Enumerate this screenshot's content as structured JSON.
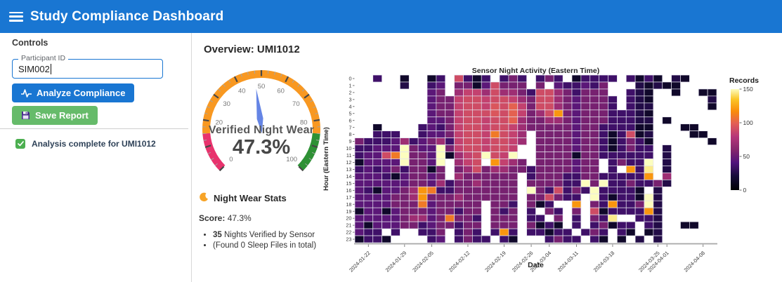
{
  "header": {
    "title": "Study Compliance Dashboard",
    "menu_icon": "hamburger-menu"
  },
  "colors": {
    "header_blue": "#1976d2",
    "button_green": "#66bb6a",
    "check_green": "#4caf50",
    "status_text": "#2f4258"
  },
  "sidebar": {
    "controls_label": "Controls",
    "participant_field": {
      "label": "Participant ID",
      "value": "SIM002"
    },
    "analyze_button_label": "Analyze Compliance",
    "save_button_label": "Save Report",
    "status_text": "Analysis complete for UMI1012"
  },
  "main": {
    "overview_title": "Overview: UMI1012",
    "stats": {
      "heading": "Night Wear Stats",
      "score_label": "Score:",
      "score_value": " 47.3%",
      "bullet1_bold": "35",
      "bullet1_text": " Nights Verified by Sensor",
      "bullet2_text": "(Found 0 Sleep Files in total)"
    }
  },
  "chart_data": [
    {
      "type": "gauge",
      "title": "Verified Night Wear",
      "value": 47.3,
      "value_label": "47.3%",
      "min": 0,
      "max": 100,
      "start_angle": 225,
      "end_angle": -45,
      "major_tick_interval": 10,
      "minor_tick_interval": 2.5,
      "visible_tick_labels": [
        0,
        20,
        30,
        40,
        50,
        60,
        70,
        80,
        100
      ],
      "zones": [
        {
          "from": 0,
          "to": 15,
          "color": "#e8336d"
        },
        {
          "from": 15,
          "to": 85,
          "color": "#f89821"
        },
        {
          "from": 85,
          "to": 100,
          "color": "#2e9135"
        }
      ],
      "needle_color": "#6585e5"
    },
    {
      "type": "heatmap",
      "title": "Sensor Night Activity (Eastern Time)",
      "xlabel": "Date",
      "ylabel": "Hour (Eastern Time)",
      "y_categories": [
        0,
        1,
        2,
        3,
        4,
        5,
        6,
        7,
        8,
        9,
        10,
        11,
        12,
        13,
        14,
        15,
        16,
        17,
        18,
        19,
        20,
        21,
        22,
        23
      ],
      "n_cols": 40,
      "x_ticks": [
        {
          "col": 1,
          "label": "2024-01-22"
        },
        {
          "col": 5,
          "label": "2024-01-29"
        },
        {
          "col": 8,
          "label": "2024-02-05"
        },
        {
          "col": 12,
          "label": "2024-02-12"
        },
        {
          "col": 16,
          "label": "2024-02-19"
        },
        {
          "col": 19,
          "label": "2024-02-26"
        },
        {
          "col": 21,
          "label": "2024-03-04"
        },
        {
          "col": 24,
          "label": "2024-03-11"
        },
        {
          "col": 28,
          "label": "2024-03-18"
        },
        {
          "col": 33,
          "label": "2024-03-25"
        },
        {
          "col": 34,
          "label": "2024-04-01"
        },
        {
          "col": 38,
          "label": "2024-04-08"
        }
      ],
      "colorbar": {
        "label": "Records",
        "ticks": [
          0,
          50,
          100,
          150
        ],
        "min": 0,
        "max": 150
      },
      "colormap_stops": [
        {
          "t": 0,
          "c": "#000004"
        },
        {
          "t": 0.14,
          "c": "#160b39"
        },
        {
          "t": 0.27,
          "c": "#4f127b"
        },
        {
          "t": 0.4,
          "c": "#85266c"
        },
        {
          "t": 0.53,
          "c": "#b63679"
        },
        {
          "t": 0.66,
          "c": "#e35e54"
        },
        {
          "t": 0.78,
          "c": "#f98c0a"
        },
        {
          "t": 0.9,
          "c": "#fbc627"
        },
        {
          "t": 1,
          "c": "#fcfdbf"
        }
      ],
      "values": [
        [
          null,
          null,
          35,
          null,
          null,
          15,
          null,
          null,
          15,
          35,
          null,
          90,
          35,
          15,
          35,
          null,
          35,
          55,
          35,
          null,
          35,
          55,
          35,
          null,
          15,
          35,
          35,
          35,
          35,
          null,
          35,
          15,
          35,
          15,
          null,
          25,
          15,
          null,
          null,
          null
        ],
        [
          null,
          null,
          null,
          null,
          null,
          25,
          null,
          null,
          35,
          45,
          null,
          55,
          55,
          15,
          45,
          90,
          55,
          55,
          55,
          null,
          55,
          null,
          45,
          35,
          35,
          45,
          35,
          55,
          null,
          null,
          null,
          25,
          15,
          25,
          15,
          15,
          null,
          null,
          null,
          null
        ],
        [
          null,
          null,
          null,
          null,
          null,
          null,
          null,
          null,
          45,
          55,
          null,
          70,
          85,
          85,
          70,
          90,
          70,
          70,
          55,
          35,
          90,
          90,
          70,
          55,
          35,
          55,
          55,
          55,
          null,
          null,
          35,
          25,
          15,
          null,
          null,
          15,
          null,
          null,
          15,
          15
        ],
        [
          null,
          null,
          null,
          null,
          null,
          null,
          null,
          null,
          45,
          55,
          55,
          85,
          90,
          90,
          85,
          90,
          90,
          85,
          70,
          55,
          90,
          90,
          70,
          55,
          45,
          55,
          55,
          55,
          35,
          null,
          35,
          25,
          15,
          null,
          null,
          null,
          null,
          null,
          null,
          25
        ],
        [
          null,
          null,
          null,
          null,
          null,
          null,
          null,
          null,
          45,
          55,
          55,
          85,
          90,
          90,
          85,
          95,
          90,
          100,
          85,
          55,
          90,
          90,
          70,
          55,
          45,
          55,
          55,
          55,
          35,
          null,
          35,
          25,
          25,
          null,
          null,
          null,
          null,
          null,
          null,
          15
        ],
        [
          null,
          null,
          null,
          null,
          null,
          null,
          null,
          null,
          45,
          55,
          55,
          85,
          90,
          90,
          90,
          95,
          90,
          100,
          85,
          55,
          70,
          90,
          120,
          55,
          45,
          55,
          55,
          55,
          35,
          35,
          35,
          25,
          15,
          null,
          null,
          null,
          null,
          null,
          null,
          null
        ],
        [
          null,
          null,
          null,
          null,
          null,
          null,
          null,
          null,
          45,
          45,
          55,
          85,
          90,
          90,
          85,
          90,
          90,
          100,
          70,
          55,
          55,
          70,
          70,
          55,
          45,
          55,
          55,
          55,
          35,
          35,
          35,
          25,
          25,
          null,
          15,
          null,
          null,
          null,
          null,
          null
        ],
        [
          null,
          null,
          15,
          null,
          null,
          null,
          null,
          35,
          45,
          35,
          55,
          85,
          90,
          90,
          85,
          90,
          90,
          85,
          70,
          55,
          55,
          55,
          55,
          55,
          45,
          55,
          55,
          35,
          35,
          35,
          35,
          15,
          15,
          null,
          null,
          null,
          15,
          15,
          null,
          null
        ],
        [
          null,
          null,
          35,
          35,
          35,
          null,
          null,
          35,
          45,
          45,
          55,
          85,
          90,
          90,
          85,
          110,
          90,
          85,
          70,
          null,
          55,
          55,
          55,
          55,
          45,
          55,
          55,
          35,
          15,
          35,
          90,
          15,
          25,
          null,
          null,
          null,
          null,
          15,
          15,
          null
        ],
        [
          55,
          35,
          35,
          35,
          45,
          70,
          35,
          45,
          55,
          70,
          35,
          85,
          90,
          90,
          85,
          90,
          90,
          85,
          70,
          null,
          55,
          55,
          55,
          55,
          45,
          55,
          55,
          35,
          15,
          35,
          55,
          35,
          15,
          null,
          null,
          null,
          null,
          null,
          null,
          15
        ],
        [
          35,
          35,
          45,
          45,
          45,
          150,
          55,
          45,
          45,
          150,
          55,
          85,
          90,
          90,
          85,
          90,
          90,
          85,
          null,
          null,
          55,
          55,
          55,
          55,
          45,
          55,
          55,
          35,
          15,
          35,
          55,
          35,
          35,
          null,
          25,
          null,
          null,
          null,
          null,
          null
        ],
        [
          35,
          45,
          45,
          90,
          110,
          150,
          55,
          55,
          45,
          150,
          15,
          70,
          85,
          90,
          150,
          90,
          85,
          150,
          null,
          null,
          55,
          55,
          55,
          55,
          15,
          55,
          55,
          35,
          35,
          35,
          35,
          35,
          35,
          null,
          25,
          null,
          null,
          null,
          null,
          null
        ],
        [
          15,
          45,
          45,
          45,
          45,
          150,
          55,
          55,
          45,
          150,
          null,
          70,
          85,
          90,
          null,
          120,
          85,
          70,
          55,
          null,
          55,
          55,
          55,
          55,
          45,
          55,
          55,
          null,
          35,
          55,
          35,
          35,
          150,
          null,
          25,
          null,
          null,
          null,
          null,
          null
        ],
        [
          35,
          45,
          35,
          45,
          55,
          35,
          55,
          55,
          15,
          55,
          null,
          55,
          70,
          90,
          55,
          70,
          70,
          55,
          55,
          35,
          55,
          55,
          55,
          55,
          45,
          55,
          55,
          null,
          35,
          null,
          120,
          35,
          145,
          null,
          25,
          null,
          null,
          null,
          null,
          null
        ],
        [
          45,
          45,
          45,
          35,
          15,
          45,
          55,
          55,
          45,
          55,
          null,
          70,
          55,
          55,
          55,
          55,
          55,
          55,
          null,
          35,
          55,
          55,
          55,
          35,
          35,
          55,
          55,
          35,
          35,
          35,
          35,
          35,
          120,
          null,
          70,
          null,
          null,
          null,
          null,
          null
        ],
        [
          45,
          45,
          45,
          45,
          45,
          45,
          55,
          55,
          45,
          70,
          35,
          55,
          55,
          70,
          55,
          55,
          55,
          55,
          null,
          55,
          55,
          55,
          55,
          35,
          35,
          150,
          55,
          150,
          35,
          35,
          55,
          35,
          35,
          55,
          25,
          null,
          null,
          null,
          null,
          null
        ],
        [
          45,
          35,
          15,
          45,
          45,
          55,
          70,
          120,
          110,
          35,
          35,
          55,
          55,
          55,
          55,
          55,
          55,
          55,
          null,
          150,
          55,
          35,
          90,
          35,
          55,
          35,
          150,
          35,
          35,
          35,
          35,
          15,
          null,
          25,
          null,
          null,
          null,
          null,
          null,
          null
        ],
        [
          45,
          45,
          45,
          45,
          55,
          55,
          70,
          120,
          55,
          55,
          55,
          70,
          55,
          55,
          55,
          55,
          55,
          55,
          null,
          55,
          55,
          90,
          55,
          35,
          35,
          null,
          150,
          35,
          15,
          35,
          35,
          15,
          150,
          25,
          null,
          null,
          null,
          null,
          null,
          null
        ],
        [
          45,
          45,
          45,
          45,
          55,
          55,
          55,
          110,
          45,
          55,
          55,
          55,
          55,
          55,
          null,
          55,
          55,
          35,
          null,
          55,
          15,
          35,
          null,
          null,
          120,
          null,
          55,
          35,
          120,
          35,
          35,
          55,
          150,
          25,
          null,
          null,
          null,
          null,
          null,
          null
        ],
        [
          15,
          45,
          45,
          15,
          45,
          55,
          55,
          55,
          45,
          55,
          55,
          35,
          55,
          55,
          null,
          55,
          35,
          55,
          null,
          35,
          null,
          55,
          35,
          null,
          55,
          null,
          90,
          15,
          35,
          35,
          35,
          35,
          120,
          25,
          null,
          null,
          null,
          null,
          null,
          null
        ],
        [
          45,
          45,
          45,
          45,
          45,
          55,
          70,
          70,
          45,
          55,
          110,
          55,
          55,
          35,
          null,
          55,
          55,
          55,
          null,
          35,
          35,
          null,
          55,
          null,
          35,
          null,
          55,
          35,
          145,
          null,
          null,
          35,
          35,
          25,
          null,
          null,
          null,
          null,
          null,
          null
        ],
        [
          45,
          15,
          45,
          45,
          45,
          55,
          55,
          35,
          45,
          55,
          55,
          35,
          55,
          55,
          null,
          55,
          55,
          55,
          null,
          55,
          15,
          35,
          15,
          null,
          35,
          null,
          35,
          55,
          15,
          35,
          35,
          null,
          35,
          25,
          null,
          null,
          15,
          15,
          null,
          null
        ],
        [
          45,
          35,
          35,
          null,
          35,
          null,
          null,
          35,
          35,
          55,
          null,
          35,
          55,
          35,
          null,
          35,
          120,
          35,
          null,
          35,
          35,
          15,
          35,
          35,
          null,
          35,
          55,
          35,
          null,
          35,
          15,
          null,
          15,
          25,
          null,
          null,
          null,
          null,
          null,
          null
        ],
        [
          15,
          35,
          35,
          15,
          null,
          null,
          null,
          null,
          35,
          45,
          null,
          35,
          55,
          35,
          35,
          null,
          35,
          15,
          null,
          null,
          null,
          35,
          55,
          35,
          35,
          null,
          35,
          15,
          null,
          15,
          null,
          25,
          null,
          25,
          null,
          null,
          null,
          null,
          null,
          null
        ]
      ]
    }
  ]
}
